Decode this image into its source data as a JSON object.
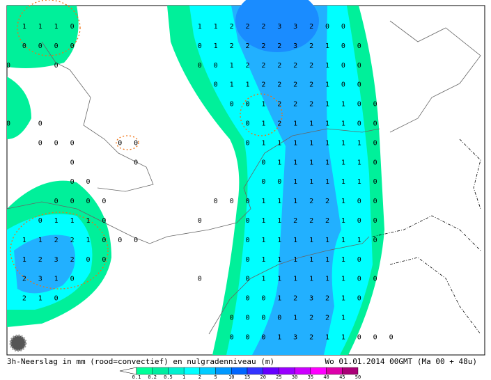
{
  "caption": "3h-Neerslag in mm (rood=convectief) en nulgradenniveau (m)",
  "date": "Wo 01.01.2014 00GMT (Ma 00 + 48u)",
  "legend": {
    "labels": [
      "0.1",
      "0.2",
      "0.5",
      "1",
      "2",
      "5",
      "10",
      "15",
      "20",
      "25",
      "30",
      "35",
      "40",
      "45",
      "50"
    ],
    "colors": [
      "#00ff99",
      "#00eea0",
      "#00f0d0",
      "#00ffff",
      "#00ccff",
      "#0099ff",
      "#0066ff",
      "#3333ff",
      "#6600ff",
      "#9900ff",
      "#cc00ff",
      "#ff00ff",
      "#dd00aa",
      "#aa0077"
    ]
  },
  "map": {
    "grid": [
      [
        null,
        "1",
        "1",
        "1",
        "0",
        null,
        null,
        null,
        null,
        null,
        null,
        null,
        "1",
        "1",
        "2",
        "2",
        "2",
        "3",
        "3",
        "2",
        "0",
        "0",
        null,
        null,
        null
      ],
      [
        null,
        "0",
        "0",
        "0",
        "0",
        null,
        null,
        null,
        null,
        null,
        null,
        null,
        "0",
        "1",
        "2",
        "2",
        "2",
        "2",
        "3",
        "2",
        "1",
        "0",
        "0",
        null,
        null
      ],
      [
        "0",
        null,
        null,
        "0",
        null,
        null,
        null,
        null,
        null,
        null,
        null,
        null,
        "0",
        "0",
        "1",
        "2",
        "2",
        "2",
        "2",
        "2",
        "1",
        "0",
        "0",
        null,
        null
      ],
      [
        null,
        null,
        null,
        null,
        null,
        null,
        null,
        null,
        null,
        null,
        null,
        null,
        null,
        "0",
        "1",
        "1",
        "2",
        "2",
        "2",
        "2",
        "1",
        "0",
        "0",
        null,
        null
      ],
      [
        null,
        null,
        null,
        null,
        null,
        null,
        null,
        null,
        null,
        null,
        null,
        null,
        null,
        null,
        "0",
        "0",
        "1",
        "2",
        "2",
        "2",
        "1",
        "1",
        "0",
        "0",
        null
      ],
      [
        "0",
        null,
        "0",
        null,
        null,
        null,
        null,
        null,
        null,
        null,
        null,
        null,
        null,
        null,
        null,
        "0",
        "1",
        "2",
        "1",
        "1",
        "1",
        "1",
        "0",
        "0",
        null
      ],
      [
        null,
        null,
        "0",
        "0",
        "0",
        null,
        null,
        "0",
        "0",
        null,
        null,
        null,
        null,
        null,
        null,
        "0",
        "1",
        "1",
        "1",
        "1",
        "1",
        "1",
        "1",
        "0",
        null
      ],
      [
        null,
        null,
        null,
        null,
        "0",
        null,
        null,
        null,
        "0",
        null,
        null,
        null,
        null,
        null,
        null,
        null,
        "0",
        "1",
        "1",
        "1",
        "1",
        "1",
        "1",
        "0",
        null
      ],
      [
        null,
        null,
        null,
        null,
        "0",
        "0",
        null,
        null,
        null,
        null,
        null,
        null,
        null,
        null,
        null,
        null,
        "0",
        "0",
        "1",
        "1",
        "1",
        "1",
        "1",
        "0",
        null
      ],
      [
        null,
        null,
        null,
        "0",
        "0",
        "0",
        "0",
        null,
        null,
        null,
        null,
        null,
        null,
        "0",
        "0",
        "0",
        "1",
        "1",
        "1",
        "2",
        "2",
        "1",
        "0",
        "0",
        null
      ],
      [
        null,
        null,
        "0",
        "1",
        "1",
        "1",
        "0",
        null,
        null,
        null,
        null,
        null,
        "0",
        null,
        null,
        "0",
        "1",
        "1",
        "2",
        "2",
        "2",
        "1",
        "0",
        "0",
        null
      ],
      [
        null,
        "1",
        "1",
        "2",
        "2",
        "1",
        "0",
        "0",
        "0",
        null,
        null,
        null,
        null,
        null,
        null,
        "0",
        "1",
        "1",
        "1",
        "1",
        "1",
        "1",
        "1",
        "0",
        null
      ],
      [
        null,
        "1",
        "2",
        "3",
        "2",
        "0",
        "0",
        null,
        null,
        null,
        null,
        null,
        null,
        null,
        null,
        "0",
        "1",
        "1",
        "1",
        "1",
        "1",
        "1",
        "0",
        null,
        null
      ],
      [
        null,
        "2",
        "3",
        "1",
        "0",
        null,
        null,
        null,
        null,
        null,
        null,
        null,
        "0",
        null,
        null,
        "0",
        "1",
        "1",
        "1",
        "1",
        "1",
        "1",
        "0",
        "0",
        null
      ],
      [
        null,
        "2",
        "1",
        "0",
        null,
        null,
        null,
        null,
        null,
        null,
        null,
        null,
        null,
        null,
        null,
        "0",
        "0",
        "1",
        "2",
        "3",
        "2",
        "1",
        "0",
        null,
        null
      ],
      [
        null,
        null,
        null,
        null,
        null,
        null,
        null,
        null,
        null,
        null,
        null,
        null,
        null,
        null,
        "0",
        "0",
        "0",
        "0",
        "1",
        "2",
        "2",
        "1",
        null,
        null,
        null
      ],
      [
        null,
        null,
        null,
        null,
        null,
        null,
        null,
        null,
        null,
        null,
        null,
        null,
        null,
        null,
        "0",
        "0",
        "0",
        "1",
        "3",
        "2",
        "1",
        "1",
        "0",
        "0",
        "0"
      ]
    ]
  }
}
